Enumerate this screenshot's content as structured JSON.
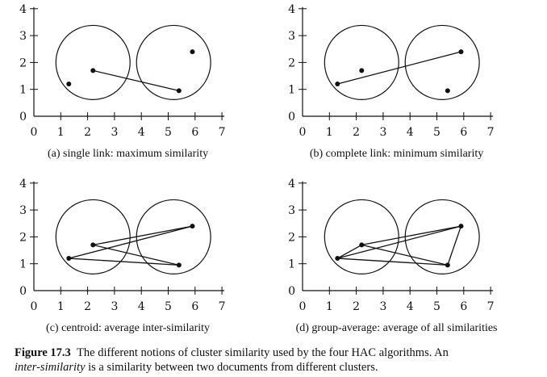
{
  "figure": {
    "label": "Figure 17.3",
    "caption_text": "The different notions of cluster similarity used by the four HAC algorithms. An",
    "caption_term": "inter-similarity",
    "caption_rest": "is a similarity between two documents from different clusters."
  },
  "chart_data": [
    {
      "type": "scatter",
      "caption": "(a) single link: maximum similarity",
      "x_ticks": [
        "0",
        "1",
        "2",
        "3",
        "4",
        "5",
        "6",
        "7"
      ],
      "y_ticks": [
        "0",
        "1",
        "2",
        "3",
        "4"
      ],
      "xlim": [
        0,
        7
      ],
      "ylim": [
        0,
        4
      ],
      "points": [
        {
          "x": 1.3,
          "y": 1.2
        },
        {
          "x": 2.2,
          "y": 1.7
        },
        {
          "x": 5.4,
          "y": 0.95
        },
        {
          "x": 5.9,
          "y": 2.4
        }
      ],
      "clusters": [
        {
          "cx": 2.2,
          "cy": 2.0,
          "r": 1.38
        },
        {
          "cx": 5.2,
          "cy": 2.0,
          "r": 1.38
        }
      ],
      "links": [
        [
          1,
          2
        ]
      ]
    },
    {
      "type": "scatter",
      "caption": "(b) complete link: minimum similarity",
      "x_ticks": [
        "0",
        "1",
        "2",
        "3",
        "4",
        "5",
        "6",
        "7"
      ],
      "y_ticks": [
        "0",
        "1",
        "2",
        "3",
        "4"
      ],
      "xlim": [
        0,
        7
      ],
      "ylim": [
        0,
        4
      ],
      "points": [
        {
          "x": 1.3,
          "y": 1.2
        },
        {
          "x": 2.2,
          "y": 1.7
        },
        {
          "x": 5.4,
          "y": 0.95
        },
        {
          "x": 5.9,
          "y": 2.4
        }
      ],
      "clusters": [
        {
          "cx": 2.2,
          "cy": 2.0,
          "r": 1.38
        },
        {
          "cx": 5.2,
          "cy": 2.0,
          "r": 1.38
        }
      ],
      "links": [
        [
          0,
          3
        ]
      ]
    },
    {
      "type": "scatter",
      "caption": "(c) centroid: average inter-similarity",
      "x_ticks": [
        "0",
        "1",
        "2",
        "3",
        "4",
        "5",
        "6",
        "7"
      ],
      "y_ticks": [
        "0",
        "1",
        "2",
        "3",
        "4"
      ],
      "xlim": [
        0,
        7
      ],
      "ylim": [
        0,
        4
      ],
      "points": [
        {
          "x": 1.3,
          "y": 1.2
        },
        {
          "x": 2.2,
          "y": 1.7
        },
        {
          "x": 5.4,
          "y": 0.95
        },
        {
          "x": 5.9,
          "y": 2.4
        }
      ],
      "clusters": [
        {
          "cx": 2.2,
          "cy": 2.0,
          "r": 1.38
        },
        {
          "cx": 5.2,
          "cy": 2.0,
          "r": 1.38
        }
      ],
      "links": [
        [
          0,
          2
        ],
        [
          0,
          3
        ],
        [
          1,
          2
        ],
        [
          1,
          3
        ]
      ]
    },
    {
      "type": "scatter",
      "caption": "(d) group-average: average of all similarities",
      "x_ticks": [
        "0",
        "1",
        "2",
        "3",
        "4",
        "5",
        "6",
        "7"
      ],
      "y_ticks": [
        "0",
        "1",
        "2",
        "3",
        "4"
      ],
      "xlim": [
        0,
        7
      ],
      "ylim": [
        0,
        4
      ],
      "points": [
        {
          "x": 1.3,
          "y": 1.2
        },
        {
          "x": 2.2,
          "y": 1.7
        },
        {
          "x": 5.4,
          "y": 0.95
        },
        {
          "x": 5.9,
          "y": 2.4
        }
      ],
      "clusters": [
        {
          "cx": 2.2,
          "cy": 2.0,
          "r": 1.38
        },
        {
          "cx": 5.2,
          "cy": 2.0,
          "r": 1.38
        }
      ],
      "links": [
        [
          0,
          1
        ],
        [
          0,
          2
        ],
        [
          0,
          3
        ],
        [
          1,
          2
        ],
        [
          1,
          3
        ],
        [
          2,
          3
        ]
      ]
    }
  ]
}
